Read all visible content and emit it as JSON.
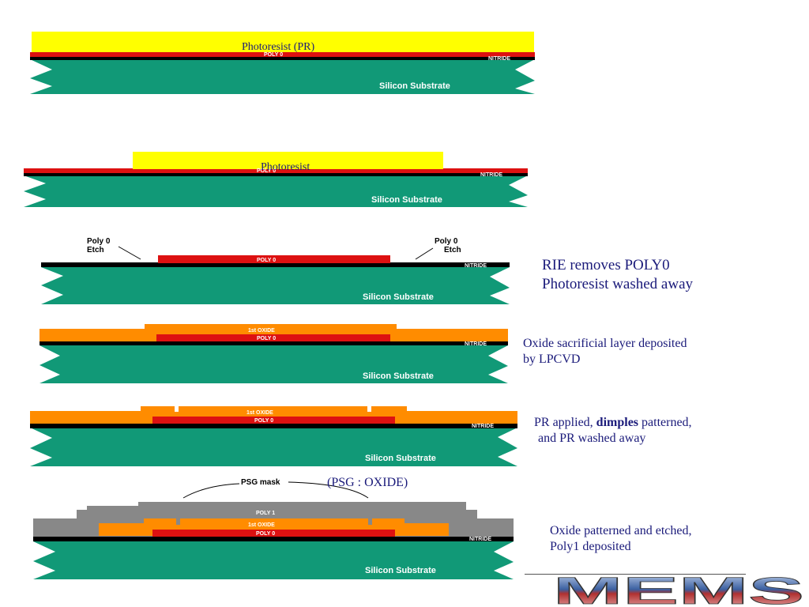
{
  "colors": {
    "photoresist": "#ffff00",
    "poly0": "#dd1111",
    "nitride": "#000000",
    "substrate": "#119977",
    "oxide": "#ff8c00",
    "poly1": "#888888",
    "caption_text": "#1a1a7a"
  },
  "labels": {
    "silicon_substrate": "Silicon Substrate",
    "nitride": "NITRIDE",
    "poly0": "POLY 0",
    "poly1": "POLY 1",
    "first_oxide": "1st OXIDE",
    "poly0_etch": "Poly 0",
    "etch": "Etch",
    "psg_mask": "PSG mask"
  },
  "overlays": {
    "step1_pr": "Photoresist (PR)",
    "step2_pr": "Photoresist",
    "psg_note": "(PSG : OXIDE)"
  },
  "captions": {
    "step3_line1": "RIE removes POLY0",
    "step3_line2": "Photoresist washed away",
    "step4_line1": "Oxide sacrificial layer deposited",
    "step4_line2": "by LPCVD",
    "step5_pre": "PR applied, ",
    "step5_bold": "dimples",
    "step5_post": " patterned,",
    "step5_line2": "and PR washed away",
    "step6_line1": "Oxide patterned and etched,",
    "step6_line2": "Poly1 deposited"
  },
  "logo": {
    "text": "MEMS"
  }
}
